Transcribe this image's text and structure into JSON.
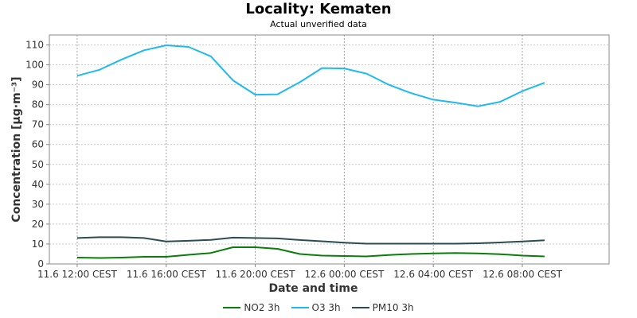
{
  "chart_data": {
    "type": "line",
    "title": "Locality: Kematen",
    "subtitle": "Actual unverified data",
    "xlabel": "Date and time",
    "ylabel": "Concentration [µg·m⁻³]",
    "ylim": [
      0,
      115
    ],
    "y_ticks": [
      0,
      10,
      20,
      30,
      40,
      50,
      60,
      70,
      80,
      90,
      100,
      110
    ],
    "x_ticks": [
      "11.6 12:00 CEST",
      "11.6 16:00 CEST",
      "11.6 20:00 CEST",
      "12.6 00:00 CEST",
      "12.6 04:00 CEST",
      "12.6 08:00 CEST"
    ],
    "x_tick_hours": [
      0,
      4,
      8,
      12,
      16,
      20
    ],
    "xlim_hours": [
      -1.25,
      23.9
    ],
    "grid": true,
    "legend_position": "bottom",
    "x_hours": [
      0,
      1,
      2,
      3,
      4,
      5,
      6,
      7,
      8,
      9,
      10,
      11,
      12,
      13,
      14,
      15,
      16,
      17,
      18,
      19,
      20,
      21
    ],
    "series": [
      {
        "name": "NO2 3h",
        "color": "#0a7d0a",
        "values": [
          3.2,
          3.0,
          3.2,
          3.6,
          3.6,
          4.6,
          5.5,
          8.4,
          8.4,
          7.6,
          5.0,
          4.2,
          4.0,
          3.8,
          4.5,
          5.0,
          5.3,
          5.5,
          5.3,
          4.9,
          4.2,
          3.8
        ]
      },
      {
        "name": "O3 3h",
        "color": "#1eb9f0",
        "values": [
          94.5,
          97.5,
          102.7,
          107.3,
          109.8,
          109.0,
          104.3,
          92.2,
          85.0,
          85.2,
          91.3,
          98.4,
          98.2,
          95.6,
          90.0,
          85.8,
          82.5,
          81.0,
          79.2,
          81.4,
          86.8,
          91.0
        ]
      },
      {
        "name": "PM10 3h",
        "color": "#2b4d4d",
        "values": [
          13.0,
          13.4,
          13.4,
          13.0,
          11.3,
          11.6,
          12.1,
          13.2,
          13.0,
          12.8,
          12.0,
          11.4,
          10.7,
          10.2,
          10.2,
          10.2,
          10.2,
          10.2,
          10.4,
          10.8,
          11.3,
          11.9
        ]
      }
    ]
  }
}
